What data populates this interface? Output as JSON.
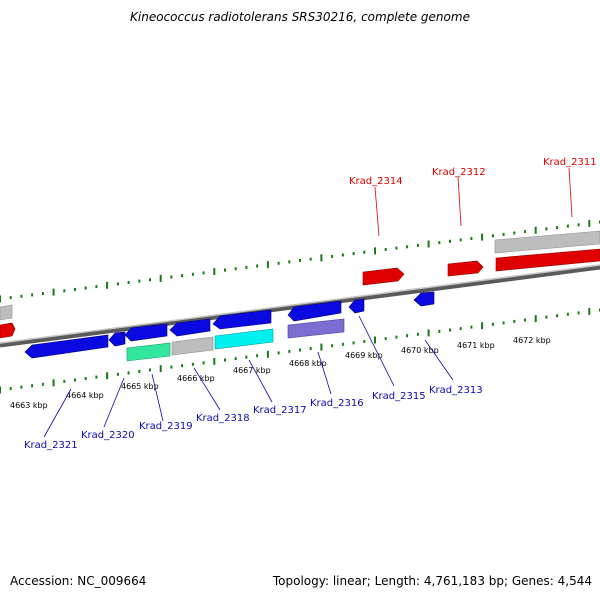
{
  "title": "Kineococcus radiotolerans SRS30216, complete genome",
  "accession_label": "Accession: NC_009664",
  "summary_label": "Topology: linear; Length: 4,761,183 bp; Genes: 4,544",
  "colors": {
    "forward_gene": "#e00000",
    "reverse_gene": "#0a0ae0",
    "grey_gene": "#bfbfbf",
    "teal_gene": "#33e6a0",
    "cyan_gene": "#00f0f0",
    "purple_gene": "#7a6fd0",
    "tick": "#1a7a1a",
    "backbone": "#777777"
  },
  "scale": {
    "ticks": [
      "4663 kbp",
      "4664 kbp",
      "4665 kbp",
      "4666 kbp",
      "4667 kbp",
      "4668 kbp",
      "4669 kbp",
      "4670 kbp",
      "4671 kbp",
      "4672 kbp"
    ]
  },
  "forward_labels": [
    "Krad_2314",
    "Krad_2312",
    "Krad_2311"
  ],
  "reverse_labels": [
    "Krad_2321",
    "Krad_2320",
    "Krad_2319",
    "Krad_2318",
    "Krad_2317",
    "Krad_2316",
    "Krad_2315",
    "Krad_2313"
  ]
}
